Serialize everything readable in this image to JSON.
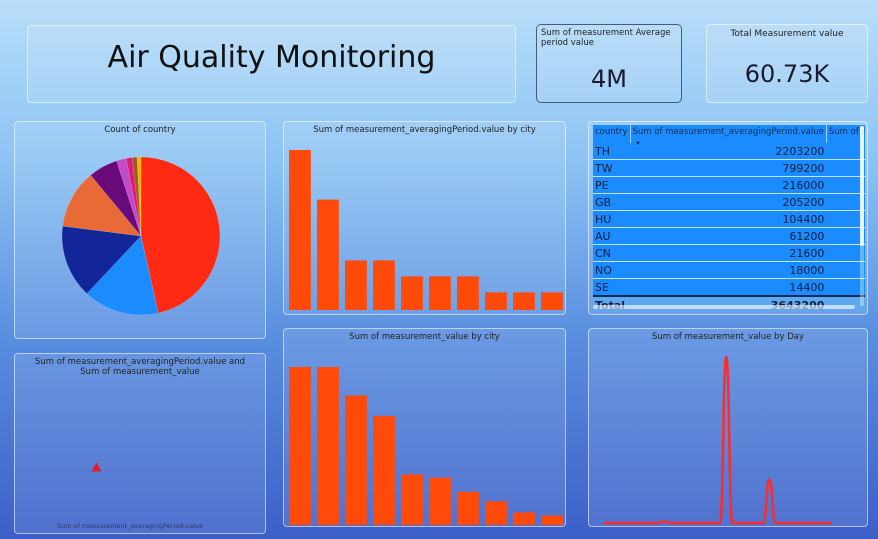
{
  "title": "Air Quality Monitoring",
  "kpi_avg_period": {
    "label": "Sum of measurement Average period value",
    "value": "4M"
  },
  "kpi_total": {
    "label": "Total Measurement value",
    "value": "60.73K"
  },
  "colors": {
    "bar": "#ff4a0a",
    "line": "#ff2a2a",
    "table_bg": "#1a8cff"
  },
  "chart_data": [
    {
      "id": "pie",
      "type": "pie",
      "title": "Count of country",
      "values": [
        46.5,
        15.5,
        15.0,
        12.0,
        6.0,
        2.0,
        1.2,
        1.0,
        0.8
      ],
      "colors": [
        "#ff2a14",
        "#1a8cff",
        "#12269a",
        "#e86a36",
        "#6a0a7a",
        "#c04ac8",
        "#e01a6e",
        "#9a5a2a",
        "#f2b300"
      ]
    },
    {
      "id": "bar1",
      "type": "bar",
      "title": "Sum of measurement_averagingPeriod.value by city",
      "values": [
        100,
        69,
        31,
        31,
        21,
        21,
        21,
        11,
        11,
        11
      ],
      "ylim": [
        0,
        100
      ]
    },
    {
      "id": "scatter",
      "type": "scatter",
      "title": "Sum of measurement_averagingPeriod.value and Sum of measurement_value",
      "xlabel": "Sum of measurement_averagingPeriod.value",
      "points": [
        {
          "x": 0.5,
          "y": 0.5
        }
      ]
    },
    {
      "id": "bar2",
      "type": "bar",
      "title": "Sum of measurement_value by city",
      "values": [
        100,
        100,
        82,
        69,
        32,
        30,
        21,
        15,
        8,
        6
      ],
      "ylim": [
        0,
        100
      ]
    },
    {
      "id": "line",
      "type": "line",
      "title": "Sum of measurement_value by Day",
      "values": [
        0,
        0,
        0,
        0,
        0,
        0,
        0,
        0,
        0,
        0,
        1,
        0,
        0,
        0,
        0,
        0,
        0,
        0,
        0,
        0,
        100,
        0,
        0,
        0,
        0,
        0,
        0,
        26,
        0,
        0,
        0,
        0,
        0,
        0,
        0,
        0,
        0,
        0
      ],
      "ylim": [
        0,
        100
      ]
    }
  ],
  "table": {
    "headers": [
      "country",
      "Sum of measurement_averagingPeriod.value",
      "Sum of mea"
    ],
    "rows": [
      [
        "TH",
        "2203200"
      ],
      [
        "TW",
        "799200"
      ],
      [
        "PE",
        "216000"
      ],
      [
        "GB",
        "205200"
      ],
      [
        "HU",
        "104400"
      ],
      [
        "AU",
        "61200"
      ],
      [
        "CN",
        "21600"
      ],
      [
        "NO",
        "18000"
      ],
      [
        "SE",
        "14400"
      ]
    ],
    "total": [
      "Total",
      "3643200"
    ]
  }
}
